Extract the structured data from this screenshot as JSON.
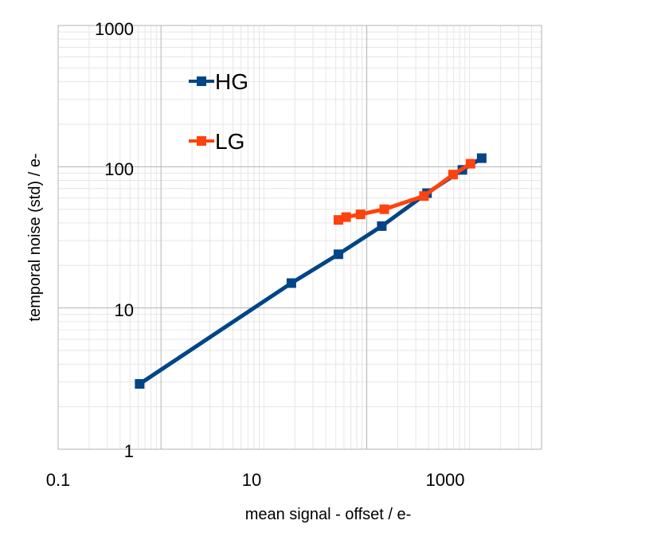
{
  "chart_data": {
    "type": "line",
    "xscale": "log",
    "yscale": "log",
    "xlim": [
      0.1,
      5000
    ],
    "ylim": [
      1,
      1000
    ],
    "xlabel": "mean signal - offset / e-",
    "ylabel": "temporal noise (std) / e-",
    "x_ticks": [
      "0.1",
      "10",
      "1000"
    ],
    "y_ticks": [
      "1000",
      "100",
      "10",
      "1"
    ],
    "grid": true,
    "legend_position": "top-left",
    "series": [
      {
        "name": "HG",
        "color": "#004586",
        "marker": "square",
        "x": [
          0.62,
          18.5,
          53,
          140,
          385,
          850,
          1310
        ],
        "y": [
          2.9,
          15,
          24,
          38,
          65,
          95,
          115
        ]
      },
      {
        "name": "LG",
        "color": "#ff420e",
        "marker": "square",
        "x": [
          53,
          63,
          87,
          148,
          360,
          690,
          1020
        ],
        "y": [
          42,
          44,
          46,
          50,
          62,
          88,
          105
        ]
      }
    ]
  }
}
